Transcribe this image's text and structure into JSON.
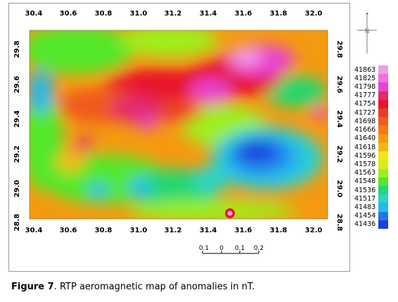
{
  "map": {
    "x_ticks": [
      "30.4",
      "30.6",
      "30.8",
      "31.0",
      "31.2",
      "31.4",
      "31.6",
      "31.8",
      "32.0"
    ],
    "y_ticks": [
      "29.8",
      "29.6",
      "29.4",
      "29.2",
      "29.0",
      "28.8"
    ],
    "x_range": [
      30.4,
      32.1
    ],
    "y_range": [
      28.8,
      29.92
    ],
    "scale_bar_labels": [
      "0.1",
      "0",
      "0.1",
      "0.2"
    ],
    "north_label": "N"
  },
  "legend": {
    "values": [
      "41863",
      "41825",
      "41798",
      "41777",
      "41754",
      "41727",
      "41698",
      "41666",
      "41640",
      "41618",
      "41596",
      "41578",
      "41563",
      "41548",
      "41536",
      "41517",
      "41483",
      "41454",
      "41436"
    ],
    "colors": [
      "#f59ae6",
      "#f070e0",
      "#e843d4",
      "#e22a6a",
      "#e8152a",
      "#ec3a2a",
      "#f05a1e",
      "#f37a12",
      "#f49a10",
      "#f5b812",
      "#f2e61a",
      "#d6f017",
      "#9cf01a",
      "#52e82a",
      "#22d870",
      "#2ad4c8",
      "#28b8f0",
      "#2274ec",
      "#1f3fd8"
    ]
  },
  "caption": {
    "label": "Figure 7",
    "text": ". RTP aeromagnetic map of anomalies in nT."
  }
}
